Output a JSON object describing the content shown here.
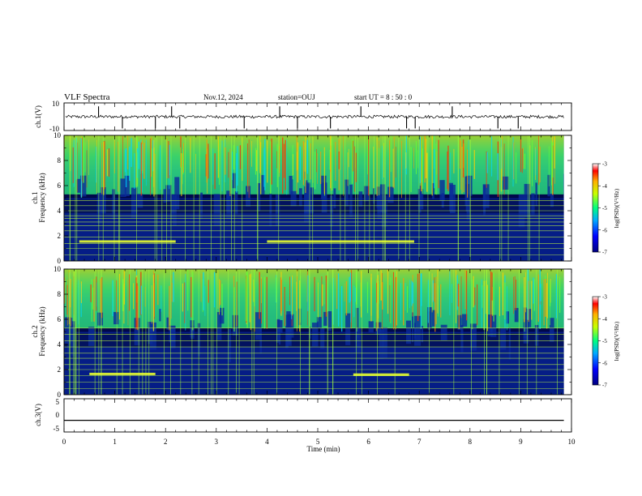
{
  "header": {
    "title": "VLF Spectra",
    "date": "Nov.12, 2024",
    "station": "station=OUJ",
    "start_time": "start  UT =   8 : 50 : 0"
  },
  "colors": {
    "colormap": [
      "#000080",
      "#0000ff",
      "#00aaff",
      "#00ff80",
      "#c8ff00",
      "#ffb000",
      "#ff0000",
      "#ffffff"
    ],
    "trace": "#000000",
    "spectrogram_background": "#00084a"
  },
  "chart_data": [
    {
      "type": "line",
      "name": "ch1-waveform",
      "ylabel": "ch.1(V)",
      "ylim": [
        -10,
        10
      ],
      "yticks": [
        "10",
        "-10"
      ],
      "baseline": 0,
      "spike_times_min": [
        0.68,
        1.15,
        1.8,
        2.12,
        2.28,
        3.55,
        4.25,
        4.6,
        5.25,
        5.85,
        6.75,
        6.92,
        7.65,
        8.55,
        8.95
      ]
    },
    {
      "type": "heatmap",
      "name": "ch1-spectrogram",
      "ylabel": "ch.1\nFrequency (kHz)",
      "ylim": [
        0,
        10
      ],
      "yticks": [
        "0",
        "2",
        "4",
        "6",
        "8",
        "10"
      ],
      "colorbar": {
        "label": "log(PSD)(V²/Hz)",
        "range": [
          -7,
          -3
        ],
        "ticks": [
          "-3",
          "-4",
          "-5",
          "-6",
          "-7"
        ]
      },
      "narrowband_lines_khz": [
        0.5,
        1.0,
        1.4,
        1.9,
        2.4,
        2.8,
        3.1,
        3.4,
        3.6,
        4.0,
        4.4,
        4.8
      ],
      "bright_band_segments": [
        {
          "start_min": 0.3,
          "end_min": 2.2,
          "khz": 1.55
        },
        {
          "start_min": 4.0,
          "end_min": 6.9,
          "khz": 1.55
        }
      ]
    },
    {
      "type": "heatmap",
      "name": "ch2-spectrogram",
      "ylabel": "ch.2\nFrequency (kHz)",
      "ylim": [
        0,
        10
      ],
      "yticks": [
        "0",
        "2",
        "4",
        "6",
        "8",
        "10"
      ],
      "colorbar": {
        "label": "log(PSD)(V²/Hz)",
        "range": [
          -7,
          -3
        ],
        "ticks": [
          "-3",
          "-4",
          "-5",
          "-6",
          "-7"
        ]
      },
      "narrowband_lines_khz": [
        0.5,
        1.0,
        1.5,
        2.0,
        2.4,
        2.9,
        3.3,
        3.8,
        4.3,
        4.8,
        5.3
      ],
      "bright_band_segments": [
        {
          "start_min": 0.5,
          "end_min": 1.8,
          "khz": 1.65
        },
        {
          "start_min": 5.7,
          "end_min": 6.8,
          "khz": 1.6
        }
      ]
    },
    {
      "type": "line",
      "name": "ch3-trace",
      "ylabel": "ch.3(V)",
      "ylim": [
        -5,
        5
      ],
      "yticks": [
        "5",
        "0",
        "-5"
      ],
      "value": -1.5
    }
  ],
  "xaxis": {
    "label": "Time (min)",
    "range": [
      0,
      10
    ],
    "data_end": 9.85,
    "ticks": [
      "0",
      "1",
      "2",
      "3",
      "4",
      "5",
      "6",
      "7",
      "8",
      "9",
      "10"
    ]
  }
}
